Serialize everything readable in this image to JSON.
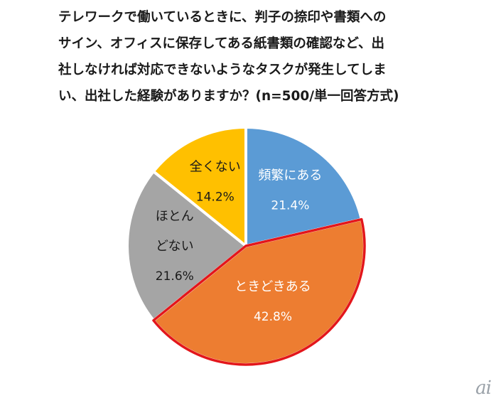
{
  "title_lines": [
    "テレワークで働いているときに、判子の捺印や書類への",
    "サイン、オフィスに保存してある紙書類の確認など、出",
    "社しなければ対応できないようなタスクが発生してしま",
    "い、出社した経験がありますか？(n=500/単一回答方式)"
  ],
  "chart_data": {
    "type": "pie",
    "title": "テレワークで働いているときに、判子の捺印や書類へのサイン、オフィスに保存してある紙書類の確認など、出社しなければ対応できないようなタスクが発生してしまい、出社した経験がありますか？(n=500/単一回答方式)",
    "slices": [
      {
        "label_lines": [
          "頻繁にある"
        ],
        "value_label": "21.4%",
        "value": 21.4,
        "color": "#5b9bd5",
        "label_color": "#ffffff",
        "highlight": false
      },
      {
        "label_lines": [
          "ときどきある"
        ],
        "value_label": "42.8%",
        "value": 42.8,
        "color": "#ed7d31",
        "label_color": "#ffffff",
        "highlight": true
      },
      {
        "label_lines": [
          "ほとん",
          "どない"
        ],
        "value_label": "21.6%",
        "value": 21.6,
        "color": "#a5a5a5",
        "label_color": "#1a1a1a",
        "highlight": false
      },
      {
        "label_lines": [
          "全くない"
        ],
        "value_label": "14.2%",
        "value": 14.2,
        "color": "#ffc000",
        "label_color": "#1a1a1a",
        "highlight": false
      }
    ],
    "start_angle": "12 o'clock",
    "direction": "clockwise",
    "highlight_outline_color": "#e3161b",
    "legend": "none"
  },
  "watermark": "ai"
}
